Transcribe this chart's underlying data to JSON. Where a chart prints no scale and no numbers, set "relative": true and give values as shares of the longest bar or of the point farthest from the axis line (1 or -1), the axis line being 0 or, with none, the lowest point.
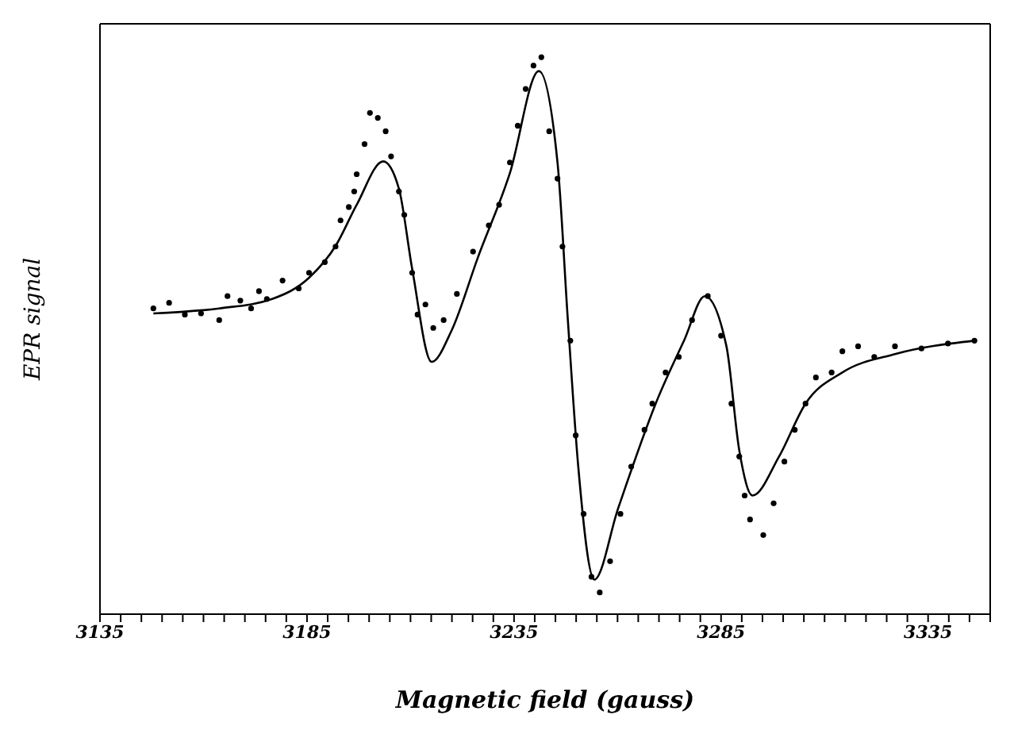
{
  "chart_data": {
    "type": "scatter",
    "xlabel": "Magnetic field (gauss)",
    "ylabel": "EPR signal",
    "relative": true,
    "xlim": [
      3135,
      3350
    ],
    "xticks": [
      3135,
      {
        "value": 3140,
        "label": null
      },
      {
        "value": 3145,
        "label": null
      },
      {
        "value": 3150,
        "label": null
      },
      {
        "value": 3155,
        "label": null
      },
      {
        "value": 3160,
        "label": null
      },
      {
        "value": 3165,
        "label": null
      },
      {
        "value": 3170,
        "label": null
      },
      {
        "value": 3175,
        "label": null
      },
      {
        "value": 3180,
        "label": null
      },
      3185,
      {
        "value": 3190,
        "label": null
      },
      {
        "value": 3195,
        "label": null
      },
      {
        "value": 3200,
        "label": null
      },
      {
        "value": 3205,
        "label": null
      },
      {
        "value": 3210,
        "label": null
      },
      {
        "value": 3215,
        "label": null
      },
      {
        "value": 3220,
        "label": null
      },
      {
        "value": 3225,
        "label": null
      },
      {
        "value": 3230,
        "label": null
      },
      3235,
      {
        "value": 3240,
        "label": null
      },
      {
        "value": 3245,
        "label": null
      },
      {
        "value": 3250,
        "label": null
      },
      {
        "value": 3255,
        "label": null
      },
      {
        "value": 3260,
        "label": null
      },
      {
        "value": 3265,
        "label": null
      },
      {
        "value": 3270,
        "label": null
      },
      {
        "value": 3275,
        "label": null
      },
      {
        "value": 3280,
        "label": null
      },
      3285,
      {
        "value": 3290,
        "label": null
      },
      {
        "value": 3295,
        "label": null
      },
      {
        "value": 3300,
        "label": null
      },
      {
        "value": 3305,
        "label": null
      },
      {
        "value": 3310,
        "label": null
      },
      {
        "value": 3315,
        "label": null
      },
      {
        "value": 3320,
        "label": null
      },
      {
        "value": 3325,
        "label": null
      },
      {
        "value": 3330,
        "label": null
      },
      3335,
      {
        "value": 3340,
        "label": null
      },
      {
        "value": 3345,
        "label": null
      },
      {
        "value": 3350,
        "label": null
      }
    ],
    "series": [
      {
        "color": "#000000",
        "marker": "circle",
        "x": [
          3147.9,
          3151.7,
          3155.5,
          3159.4,
          3163.8,
          3165.8,
          3168.9,
          3171.5,
          3173.4,
          3175.3,
          3179.1,
          3183.0,
          3185.5,
          3189.3,
          3191.9,
          3193.1,
          3195.1,
          3196.4,
          3197.0,
          3198.9,
          3200.2,
          3202.1,
          3204.0,
          3205.3,
          3207.2,
          3208.5,
          3210.4,
          3211.7,
          3213.6,
          3215.5,
          3218.0,
          3221.2,
          3225.1,
          3228.9,
          3231.4,
          3234.0,
          3235.9,
          3237.8,
          3239.7,
          3241.6,
          3243.5,
          3245.5,
          3246.7,
          3248.6,
          3249.9,
          3251.8,
          3253.7,
          3255.7,
          3258.2,
          3260.7,
          3263.3,
          3266.5,
          3268.4,
          3271.6,
          3274.8,
          3278.0,
          3281.8,
          3285.0,
          3287.5,
          3289.4,
          3290.7,
          3292.0,
          3295.2,
          3297.7,
          3300.3,
          3302.8,
          3305.4,
          3307.9,
          3311.7,
          3314.3,
          3318.1,
          3322.0,
          3327.0,
          3333.4,
          3339.8,
          3346.2
        ],
        "values": [
          0.549,
          0.559,
          0.538,
          0.54,
          0.528,
          0.571,
          0.563,
          0.549,
          0.58,
          0.566,
          0.599,
          0.585,
          0.613,
          0.632,
          0.66,
          0.707,
          0.731,
          0.759,
          0.79,
          0.844,
          0.9,
          0.891,
          0.867,
          0.822,
          0.759,
          0.717,
          0.613,
          0.538,
          0.556,
          0.514,
          0.528,
          0.575,
          0.651,
          0.698,
          0.735,
          0.811,
          0.877,
          0.943,
          0.985,
          1,
          0.867,
          0.782,
          0.66,
          0.491,
          0.321,
          0.18,
          0.067,
          0.039,
          0.095,
          0.18,
          0.265,
          0.331,
          0.378,
          0.434,
          0.462,
          0.528,
          0.571,
          0.5,
          0.378,
          0.283,
          0.213,
          0.17,
          0.142,
          0.199,
          0.274,
          0.331,
          0.378,
          0.425,
          0.434,
          0.472,
          0.481,
          0.462,
          0.481,
          0.477,
          0.486,
          0.491
        ]
      },
      {
        "type": "line",
        "color": "#000000",
        "line_style": "solid",
        "x": [
          3147.9,
          3163.8,
          3176.6,
          3185.5,
          3191.9,
          3197.0,
          3203.4,
          3207.2,
          3210.4,
          3215.1,
          3219.9,
          3226.3,
          3234.0,
          3241.0,
          3245.5,
          3248.0,
          3250.5,
          3254.4,
          3260.1,
          3269.7,
          3276.1,
          3281.1,
          3286.3,
          3289.4,
          3292.6,
          3299.0,
          3305.4,
          3314.3,
          3327.0,
          3346.2
        ],
        "values": [
          0.54,
          0.549,
          0.566,
          0.604,
          0.661,
          0.735,
          0.813,
          0.764,
          0.62,
          0.453,
          0.509,
          0.641,
          0.792,
          0.975,
          0.811,
          0.528,
          0.266,
          0.062,
          0.189,
          0.387,
          0.492,
          0.571,
          0.481,
          0.294,
          0.213,
          0.283,
          0.378,
          0.434,
          0.467,
          0.491
        ]
      }
    ]
  }
}
